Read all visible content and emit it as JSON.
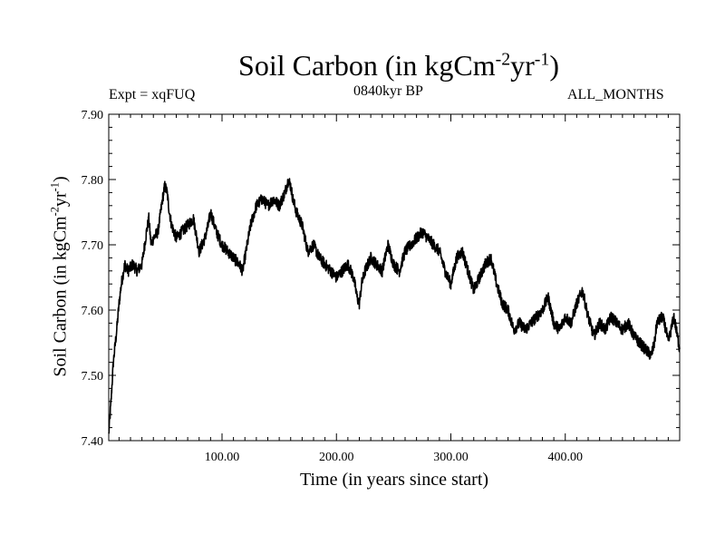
{
  "chart_data": {
    "type": "line",
    "title": "Soil Carbon (in kgCm",
    "title_sup1": "-2",
    "title_mid": "yr",
    "title_sup2": "-1",
    "title_end": ")",
    "subtitle_left": "Expt = xqFUQ",
    "subtitle_center": "0840kyr BP",
    "subtitle_right": "ALL_MONTHS",
    "xlabel": "Time (in years since start)",
    "ylabel": "Soil Carbon (in kgCm",
    "ylabel_sup1": "-2",
    "ylabel_mid": "yr",
    "ylabel_sup2": "-1",
    "ylabel_end": ")",
    "xlim": [
      1,
      500
    ],
    "ylim": [
      7.4,
      7.9
    ],
    "xticks": [
      100,
      200,
      300,
      400
    ],
    "xtick_labels": [
      "100.00",
      "200.00",
      "300.00",
      "400.00"
    ],
    "yticks": [
      7.4,
      7.5,
      7.6,
      7.7,
      7.8,
      7.9
    ],
    "ytick_labels": [
      "7.40",
      "7.50",
      "7.60",
      "7.70",
      "7.80",
      "7.90"
    ],
    "grid": false,
    "line_color": "#000000",
    "series": [
      {
        "name": "Soil Carbon",
        "x": [
          1,
          3,
          5,
          8,
          10,
          12,
          15,
          18,
          22,
          26,
          30,
          34,
          36,
          38,
          40,
          44,
          48,
          50,
          52,
          54,
          56,
          60,
          65,
          70,
          75,
          80,
          85,
          88,
          90,
          95,
          100,
          105,
          110,
          115,
          118,
          121,
          125,
          130,
          135,
          140,
          145,
          150,
          155,
          158,
          160,
          162,
          165,
          170,
          175,
          180,
          185,
          190,
          195,
          200,
          205,
          210,
          215,
          218,
          220,
          222,
          225,
          230,
          235,
          240,
          245,
          250,
          255,
          260,
          265,
          270,
          275,
          280,
          285,
          290,
          295,
          300,
          305,
          310,
          315,
          320,
          325,
          330,
          335,
          340,
          345,
          350,
          355,
          360,
          365,
          370,
          375,
          380,
          385,
          390,
          395,
          400,
          405,
          410,
          415,
          420,
          425,
          430,
          435,
          440,
          445,
          450,
          455,
          460,
          465,
          470,
          475,
          478,
          480,
          485,
          488,
          490,
          495,
          500
        ],
        "values": [
          7.41,
          7.46,
          7.52,
          7.57,
          7.61,
          7.64,
          7.67,
          7.66,
          7.67,
          7.66,
          7.67,
          7.72,
          7.74,
          7.7,
          7.71,
          7.72,
          7.77,
          7.79,
          7.78,
          7.75,
          7.73,
          7.71,
          7.72,
          7.73,
          7.74,
          7.69,
          7.71,
          7.73,
          7.75,
          7.72,
          7.7,
          7.69,
          7.68,
          7.67,
          7.66,
          7.69,
          7.73,
          7.76,
          7.77,
          7.76,
          7.77,
          7.76,
          7.78,
          7.8,
          7.79,
          7.77,
          7.75,
          7.73,
          7.69,
          7.7,
          7.68,
          7.67,
          7.66,
          7.65,
          7.66,
          7.67,
          7.65,
          7.62,
          7.61,
          7.64,
          7.66,
          7.68,
          7.67,
          7.66,
          7.7,
          7.67,
          7.66,
          7.69,
          7.7,
          7.71,
          7.72,
          7.71,
          7.7,
          7.69,
          7.66,
          7.64,
          7.68,
          7.69,
          7.66,
          7.63,
          7.65,
          7.67,
          7.68,
          7.64,
          7.61,
          7.6,
          7.57,
          7.58,
          7.57,
          7.58,
          7.59,
          7.6,
          7.62,
          7.58,
          7.57,
          7.59,
          7.58,
          7.61,
          7.63,
          7.59,
          7.56,
          7.58,
          7.57,
          7.59,
          7.58,
          7.57,
          7.58,
          7.56,
          7.55,
          7.54,
          7.53,
          7.55,
          7.58,
          7.59,
          7.57,
          7.55,
          7.59,
          7.54
        ]
      }
    ]
  }
}
